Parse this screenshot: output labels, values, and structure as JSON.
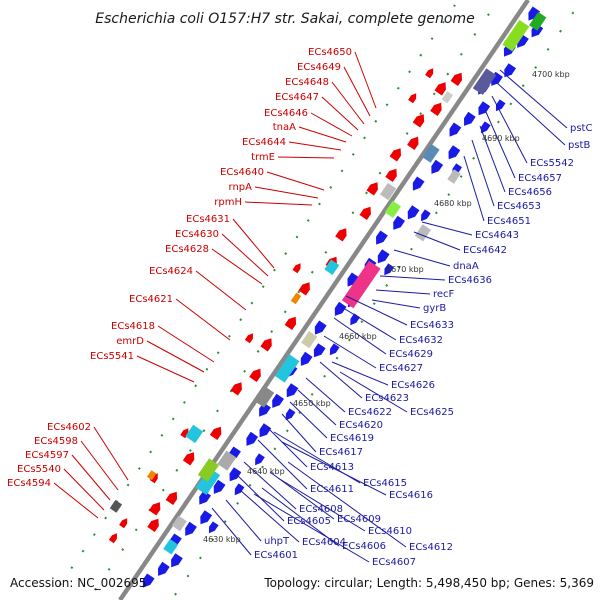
{
  "title": "Escherichia coli O157:H7 str. Sakai, complete genome",
  "footer": {
    "accession": "Accession: NC_002695",
    "topology": "Topology: circular; Length: 5,498,450 bp; Genes: 5,369"
  },
  "colors": {
    "forward": "#ee0000",
    "reverse": "#1a1ae6",
    "backbone": "#888888",
    "label_red": "#cc0000",
    "label_blue": "#1a1aa0",
    "dots": "#2e8b2e"
  },
  "kbp_ticks": [
    "4630 kbp",
    "4640 kbp",
    "4650 kbp",
    "4660 kbp",
    "4670 kbp",
    "4680 kbp",
    "4690 kbp",
    "4700 kbp"
  ],
  "left_labels": [
    "ECs4650",
    "ECs4649",
    "ECs4648",
    "ECs4647",
    "ECs4646",
    "tnaA",
    "ECs4644",
    "trmE",
    "ECs4640",
    "rnpA",
    "rpmH",
    "ECs4631",
    "ECs4630",
    "ECs4628",
    "ECs4624",
    "ECs4621",
    "ECs4618",
    "emrD",
    "ECs5541",
    "ECs4602",
    "ECs4598",
    "ECs4597",
    "ECs5540",
    "ECs4594"
  ],
  "right_labels": [
    "pstC",
    "pstB",
    "ECs5542",
    "ECs4657",
    "ECs4656",
    "ECs4653",
    "ECs4651",
    "ECs4643",
    "ECs4642",
    "dnaA",
    "ECs4636",
    "recF",
    "gyrB",
    "ECs4633",
    "ECs4632",
    "ECs4629",
    "ECs4627",
    "ECs4626",
    "ECs4623",
    "ECs4625",
    "ECs4622",
    "ECs4620",
    "ECs4619",
    "ECs4617",
    "ECs4613",
    "ECs4615",
    "ECs4611",
    "ECs4616",
    "ECs4608",
    "ECs4609",
    "ECs4605",
    "ECs4610",
    "uhpT",
    "ECs4604",
    "ECs4606",
    "ECs4612",
    "ECs4601",
    "ECs4607"
  ]
}
